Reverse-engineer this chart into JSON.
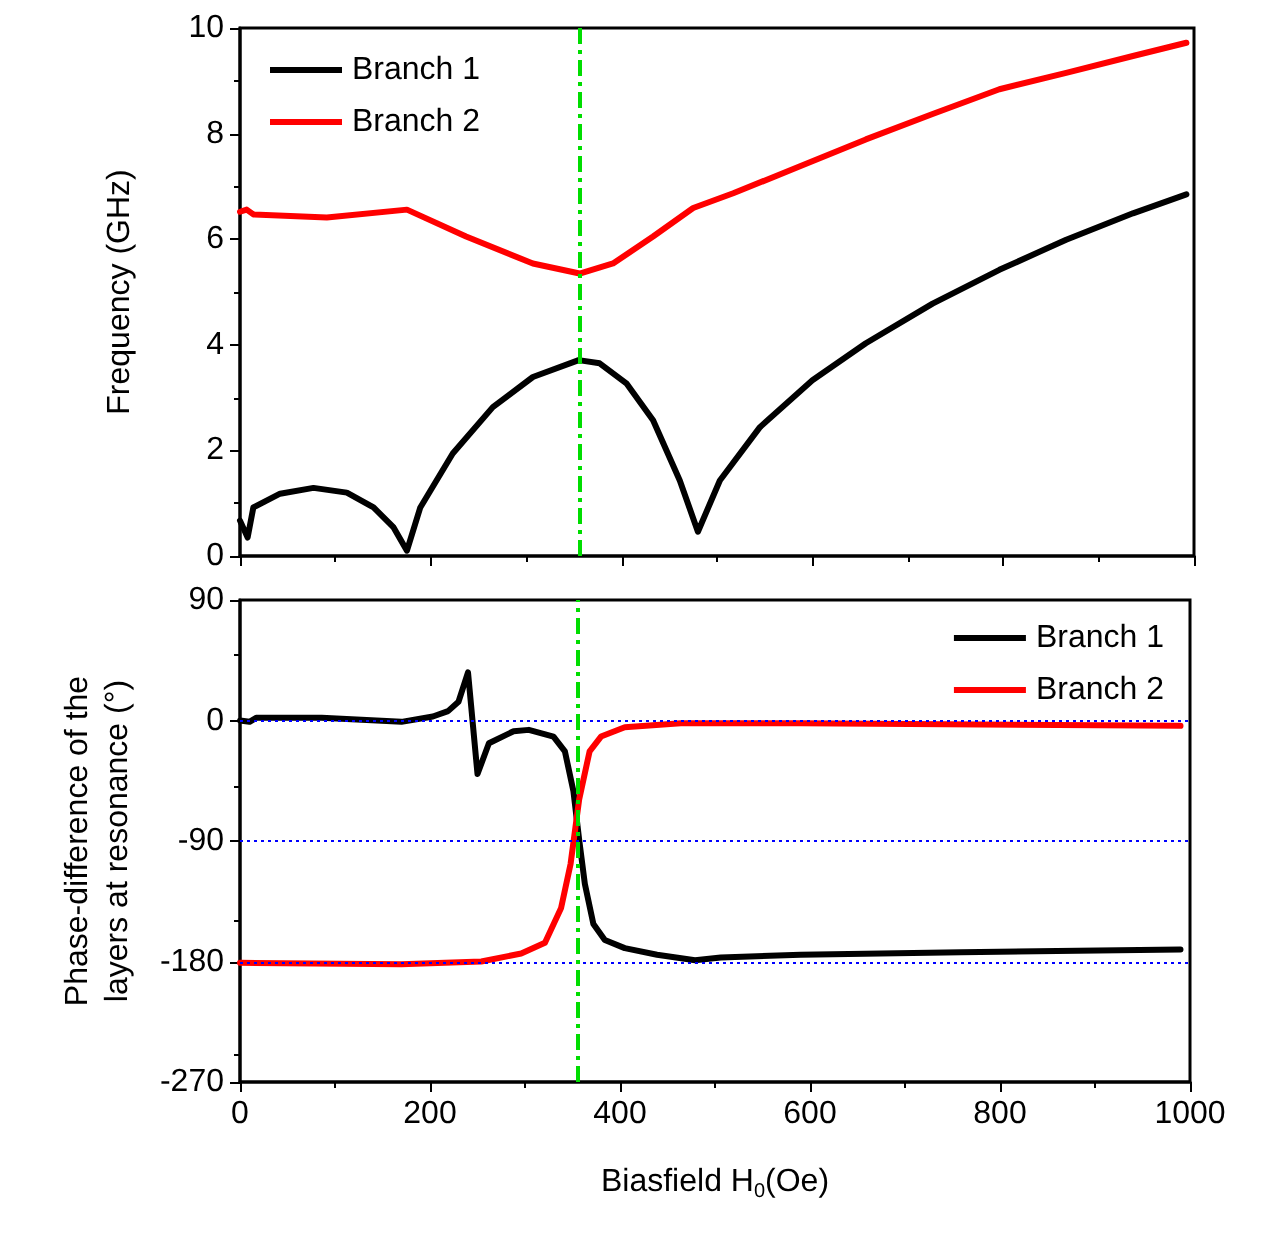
{
  "chart_data": [
    {
      "type": "line",
      "ylabel": "Frequency (GHz)",
      "xlim": [
        0,
        1000
      ],
      "xticks": [
        0,
        200,
        400,
        600,
        800,
        1000
      ],
      "ylim": [
        0,
        10
      ],
      "yticks": [
        0,
        2,
        4,
        6,
        8,
        10
      ],
      "tick_labels": "y",
      "grid": false,
      "legend": "top left",
      "marker": "none",
      "line_style": "solid",
      "series": [
        {
          "name": "Branch 1",
          "color": "#000000",
          "x": [
            0,
            8,
            14,
            42,
            77,
            112,
            140,
            161,
            175,
            189,
            223,
            265,
            307,
            355,
            377,
            405,
            433,
            461,
            480,
            503,
            545,
            600,
            656,
            726,
            796,
            866,
            936,
            992
          ],
          "values": [
            0.67,
            0.35,
            0.92,
            1.18,
            1.29,
            1.2,
            0.92,
            0.54,
            0.1,
            0.92,
            1.94,
            2.82,
            3.39,
            3.71,
            3.65,
            3.27,
            2.57,
            1.43,
            0.46,
            1.43,
            2.44,
            3.33,
            4.03,
            4.78,
            5.42,
            5.99,
            6.49,
            6.85
          ]
        },
        {
          "name": "Branch 2",
          "color": "#ff0000",
          "x": [
            0,
            7,
            14,
            91,
            175,
            237,
            307,
            356,
            391,
            433,
            475,
            517,
            587,
            656,
            726,
            796,
            866,
            936,
            992
          ],
          "values": [
            6.52,
            6.56,
            6.47,
            6.41,
            6.56,
            6.05,
            5.54,
            5.35,
            5.54,
            6.05,
            6.59,
            6.87,
            7.38,
            7.89,
            8.37,
            8.84,
            9.15,
            9.47,
            9.72
          ]
        }
      ],
      "ref_lines": [
        {
          "axis": "x",
          "value": 355,
          "color": "#00dd00",
          "line_style": "dashdot"
        }
      ]
    },
    {
      "type": "line",
      "xlabel": "Biasfield H$_{0}$(Oe)",
      "ylabel": "Phase-difference of the\nlayers at resonance (°)",
      "xlim": [
        0,
        1000
      ],
      "xticks": [
        0,
        200,
        400,
        600,
        800,
        1000
      ],
      "ylim": [
        -270,
        90
      ],
      "yticks": [
        -270,
        -180,
        -90,
        0,
        90
      ],
      "grid": false,
      "legend": "top right",
      "marker": "none",
      "line_style": "solid",
      "series": [
        {
          "name": "Branch 1",
          "color": "#000000",
          "x": [
            0,
            10,
            17,
            86,
            170,
            203,
            219,
            230,
            240,
            250,
            262,
            288,
            304,
            330,
            342,
            351,
            357,
            363,
            372,
            384,
            405,
            439,
            479,
            506,
            590,
            759,
            990
          ],
          "values": [
            0,
            -1,
            2,
            2,
            -1,
            3,
            7,
            14,
            36,
            -40,
            -17,
            -8,
            -7,
            -12,
            -23,
            -53,
            -89,
            -122,
            -152,
            -164,
            -170,
            -175,
            -179,
            -177,
            -175,
            -173,
            -171
          ]
        },
        {
          "name": "Branch 2",
          "color": "#ff0000",
          "x": [
            0,
            170,
            254,
            296,
            321,
            338,
            348,
            357,
            368,
            380,
            405,
            464,
            590,
            990
          ],
          "values": [
            -181,
            -182,
            -180,
            -174,
            -166,
            -140,
            -107,
            -59,
            -23,
            -12,
            -5,
            -2,
            -2,
            -4
          ]
        }
      ],
      "ref_lines": [
        {
          "axis": "y",
          "value": 0,
          "color": "#0000ff",
          "line_style": "dotted"
        },
        {
          "axis": "y",
          "value": -90,
          "color": "#0000ff",
          "line_style": "dotted"
        },
        {
          "axis": "y",
          "value": -180,
          "color": "#0000ff",
          "line_style": "dotted"
        },
        {
          "axis": "x",
          "value": 355,
          "color": "#00dd00",
          "line_style": "dashdot"
        }
      ]
    }
  ]
}
